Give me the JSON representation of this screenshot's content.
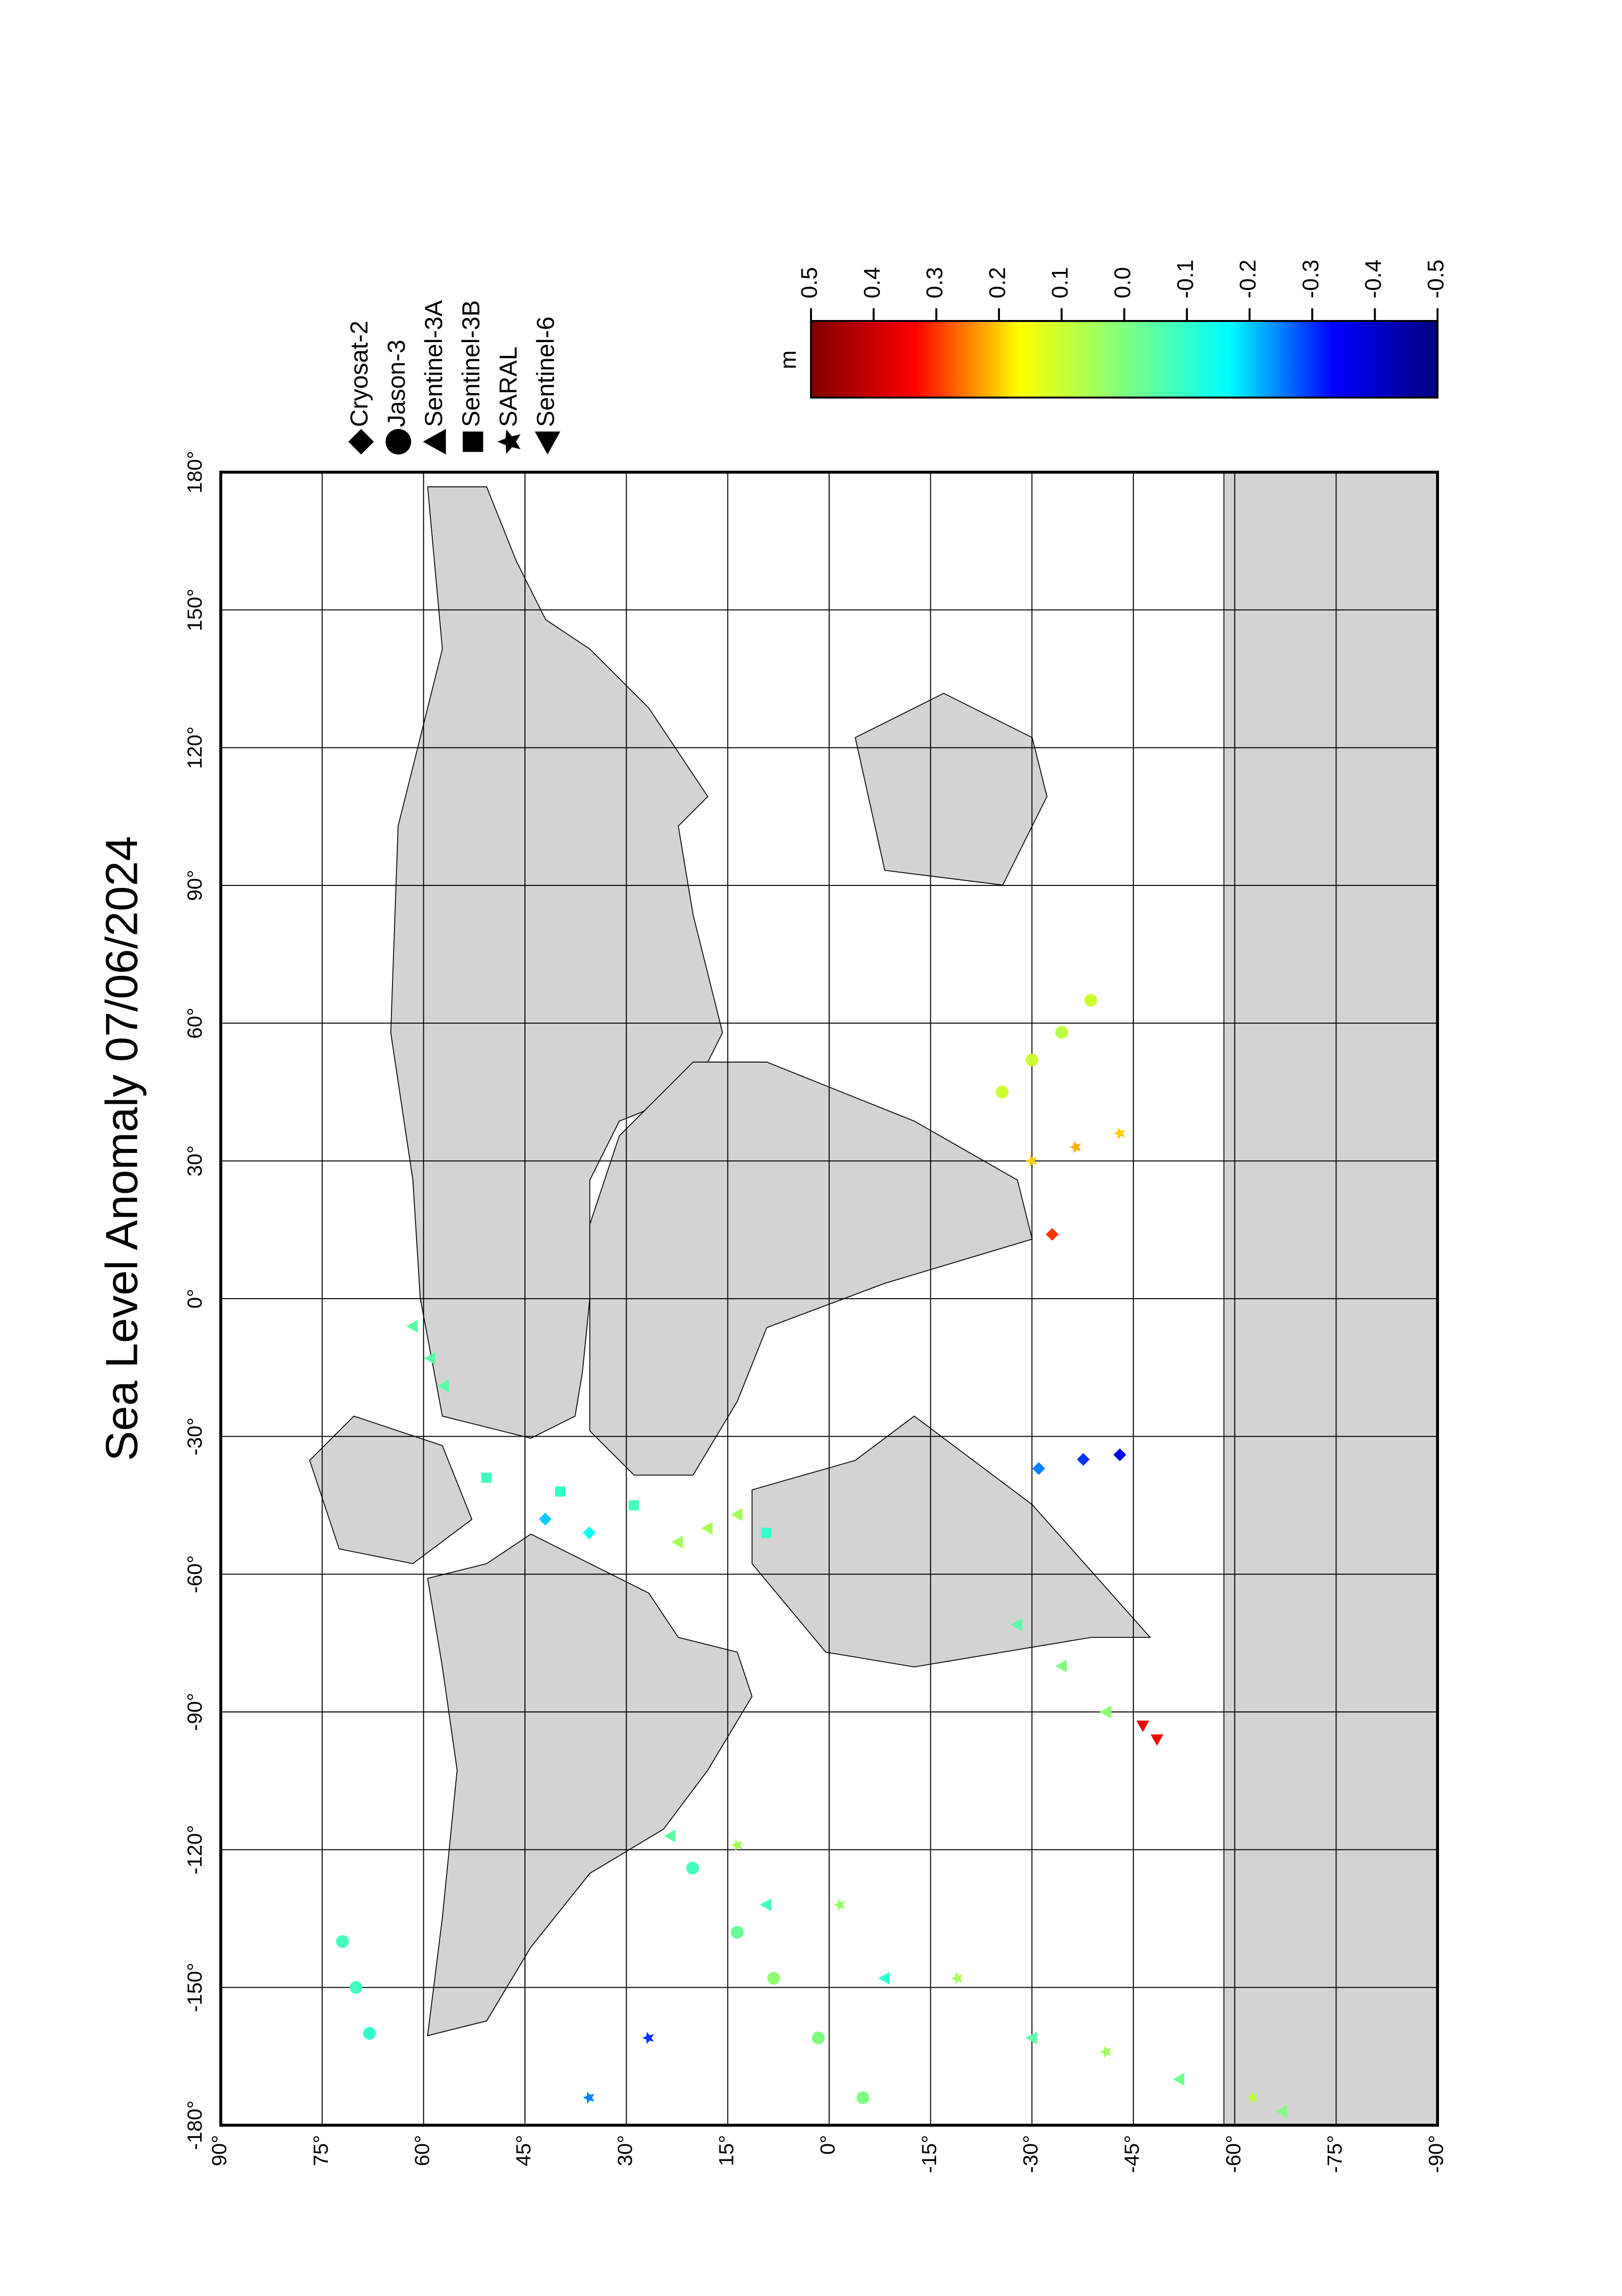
{
  "chart_data": {
    "type": "map",
    "title": "Sea Level Anomaly 07/06/2024",
    "colorbar_label": "m",
    "clim": [
      -0.5,
      0.5
    ],
    "colormap": [
      "#00007f",
      "#0000ff",
      "#00ffff",
      "#7fff7f",
      "#ffff00",
      "#ff0000",
      "#7f0000"
    ],
    "cticks": [
      0.5,
      0.4,
      0.3,
      0.2,
      0.1,
      {
        "value": 0,
        "label": "0.0"
      },
      -0.1,
      -0.2,
      -0.3,
      -0.4,
      -0.5
    ],
    "xlim": [
      -180,
      180
    ],
    "xticks": [
      {
        "value": -180,
        "label": "-180°"
      },
      {
        "value": -150,
        "label": "-150°"
      },
      {
        "value": -120,
        "label": "-120°"
      },
      {
        "value": -90,
        "label": "-90°"
      },
      {
        "value": -60,
        "label": "-60°"
      },
      {
        "value": -30,
        "label": "-30°"
      },
      {
        "value": 0,
        "label": "0°"
      },
      {
        "value": 30,
        "label": "30°"
      },
      {
        "value": 60,
        "label": "60°"
      },
      {
        "value": 90,
        "label": "90°"
      },
      {
        "value": 120,
        "label": "120°"
      },
      {
        "value": 150,
        "label": "150°"
      },
      {
        "value": 180,
        "label": "180°"
      }
    ],
    "ylim": [
      -90,
      90
    ],
    "yticks": [
      {
        "value": 90,
        "label": "90°"
      },
      {
        "value": 75,
        "label": "75°"
      },
      {
        "value": 60,
        "label": "60°"
      },
      {
        "value": 45,
        "label": "45°"
      },
      {
        "value": 30,
        "label": "30°"
      },
      {
        "value": 15,
        "label": "15°"
      },
      {
        "value": 0,
        "label": "0°"
      },
      {
        "value": -15,
        "label": "-15°"
      },
      {
        "value": -30,
        "label": "-30°"
      },
      {
        "value": -45,
        "label": "-45°"
      },
      {
        "value": -60,
        "label": "-60°"
      },
      {
        "value": -75,
        "label": "-75°"
      },
      {
        "value": -90,
        "label": "-90°"
      }
    ],
    "grid": true,
    "series": [
      {
        "name": "Cryosat-2",
        "marker": "diamond",
        "x": [
          -48,
          -51,
          -37,
          -35,
          -34,
          14
        ],
        "y": [
          42,
          35.5,
          -31,
          -37.6,
          -43,
          -33
        ],
        "values": [
          -0.2,
          -0.15,
          -0.25,
          -0.3,
          -0.35,
          0.3
        ]
      },
      {
        "name": "Jason-3",
        "marker": "circle",
        "x": [
          -174,
          -161,
          -148,
          -138,
          -124,
          -140,
          -150,
          -160,
          45,
          52,
          58,
          65
        ],
        "y": [
          -5,
          1.6,
          8.2,
          13.6,
          20.2,
          72,
          70,
          68,
          -25.6,
          -30,
          -34.4,
          -38.7
        ],
        "values": [
          0.0,
          0.0,
          0.02,
          -0.03,
          -0.08,
          -0.08,
          -0.08,
          -0.1,
          0.1,
          0.1,
          0.08,
          0.1
        ]
      },
      {
        "name": "Sentinel-3A",
        "marker": "triangle-up",
        "x": [
          -117,
          -132,
          -148,
          -161,
          -170,
          -177,
          -71,
          -80,
          -90,
          -6,
          -13,
          -19,
          -53,
          -50,
          -47
        ],
        "y": [
          23.5,
          9.3,
          -8.2,
          -30,
          -51.8,
          -67,
          -27.8,
          -34.4,
          -41,
          61.6,
          59,
          57,
          22.4,
          18,
          13.6
        ],
        "values": [
          -0.05,
          -0.08,
          -0.1,
          -0.05,
          -0.02,
          0.0,
          -0.05,
          0.0,
          0.02,
          -0.05,
          -0.05,
          -0.05,
          0.05,
          0.05,
          0.05
        ]
      },
      {
        "name": "Sentinel-3B",
        "marker": "square",
        "x": [
          -39,
          -42,
          -45,
          -51
        ],
        "y": [
          50.7,
          39.8,
          28.9,
          9.3
        ],
        "values": [
          -0.08,
          -0.1,
          -0.08,
          -0.1
        ]
      },
      {
        "name": "SARAL",
        "marker": "star",
        "x": [
          -119,
          -132,
          -148,
          -164,
          -174,
          -174,
          -161,
          30,
          33,
          36
        ],
        "y": [
          13.6,
          -1.6,
          -19,
          -41,
          -62.7,
          35.5,
          26.7,
          -30,
          -36.5,
          -43
        ],
        "values": [
          0.05,
          0.03,
          0.05,
          0.05,
          0.08,
          -0.25,
          -0.3,
          0.2,
          0.22,
          0.2
        ]
      },
      {
        "name": "Sentinel-6",
        "marker": "triangle-left",
        "x": [
          -93,
          -96
        ],
        "y": [
          -46.4,
          -48.5
        ],
        "values": [
          0.35,
          0.33
        ]
      }
    ]
  }
}
